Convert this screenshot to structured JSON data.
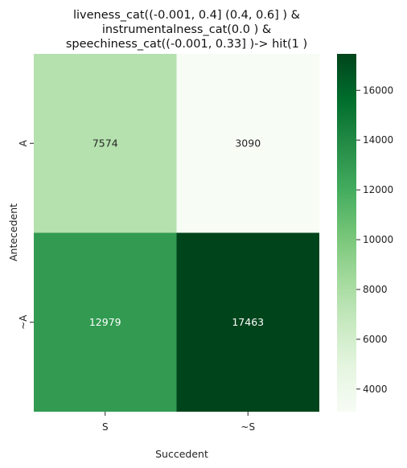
{
  "chart_data": {
    "type": "heatmap",
    "title_lines": [
      "liveness_cat((-0.001, 0.4] (0.4, 0.6] ) &",
      "instrumentalness_cat(0.0 ) &",
      "speechiness_cat((-0.001, 0.33] )-> hit(1 )"
    ],
    "xlabel": "Succedent",
    "ylabel": "Antecedent",
    "x_categories": [
      "S",
      "~S"
    ],
    "y_categories": [
      "A",
      "~A"
    ],
    "values": [
      [
        7574,
        3090
      ],
      [
        12979,
        17463
      ]
    ],
    "colorbar": {
      "min": 3090,
      "max": 17463,
      "ticks": [
        4000,
        6000,
        8000,
        10000,
        12000,
        14000,
        16000
      ],
      "colormap": "Greens"
    },
    "colors": {
      "low": "#f7fcf5",
      "high": "#00441b"
    }
  }
}
